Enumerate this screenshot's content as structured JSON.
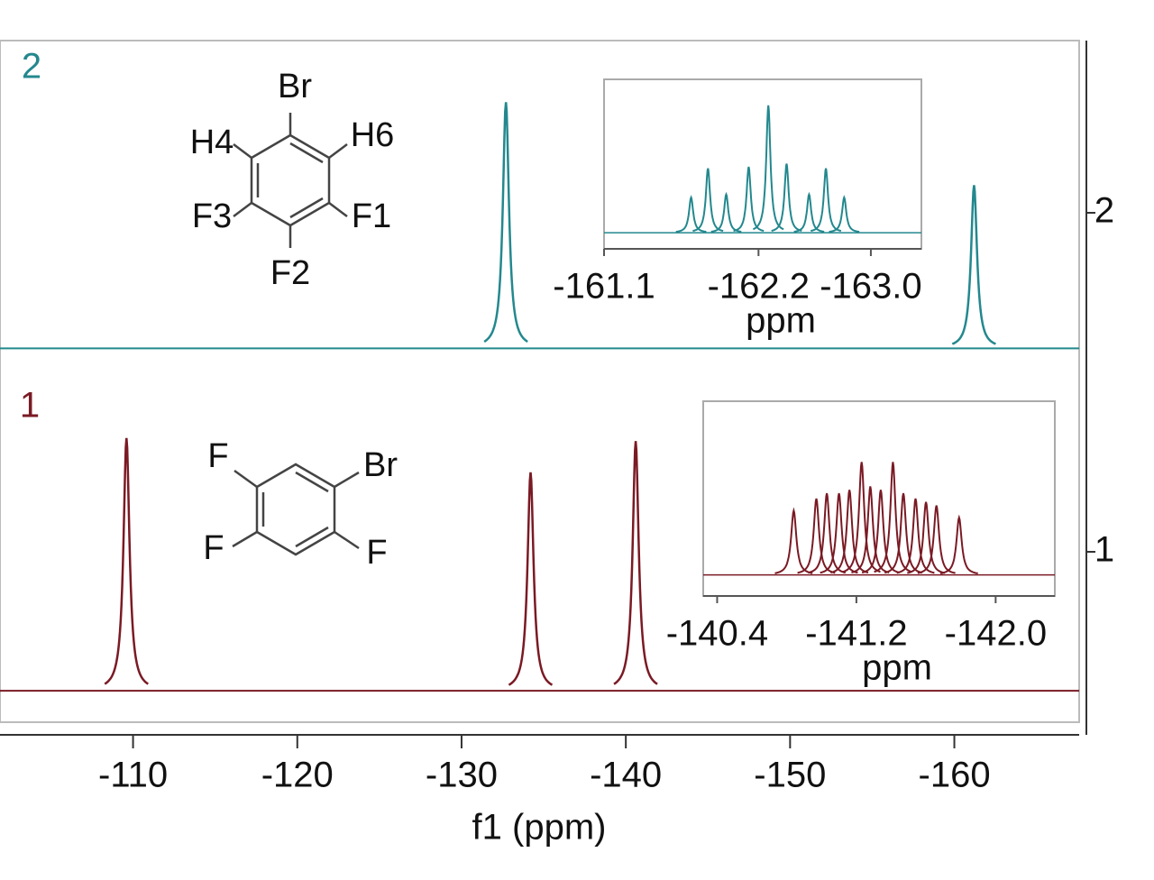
{
  "chart_data": {
    "type": "nmr",
    "xlabel": "f1 (ppm)",
    "xlim": [
      -101.9,
      -167.6
    ],
    "xticks": [
      -110,
      -120,
      -130,
      -140,
      -150,
      -160
    ],
    "series": [
      {
        "name": "2",
        "color": "#23888e",
        "offset_label": "2",
        "x": [
          -132.7,
          -161.2
        ],
        "values": [
          80,
          53
        ],
        "ylim": [
          -4,
          100
        ],
        "structure": [
          "Br",
          "H4",
          "H6",
          "F3",
          "F1",
          "F2"
        ],
        "inset": {
          "xlabel": "ppm",
          "xlim": [
            -161.1,
            -163.36
          ],
          "xticks": [
            -161.1,
            -162.2,
            {
              "value": -163,
              "label": "-163.0"
            }
          ],
          "ylim": [
            -7,
            100
          ],
          "x": [
            -161.72,
            -161.84,
            -161.97,
            -162.13,
            -162.27,
            -162.4,
            -162.56,
            -162.68,
            -162.81
          ],
          "values": [
            23,
            42,
            25,
            43,
            83,
            45,
            25,
            42,
            23
          ]
        }
      },
      {
        "name": "1",
        "color": "#7a1a24",
        "offset_label": "1",
        "x": [
          -109.6,
          -134.2,
          -140.6
        ],
        "values": [
          81,
          70,
          80
        ],
        "ylim": [
          -4,
          100
        ],
        "structure": [
          "F",
          "Br",
          "F",
          "F"
        ],
        "inset": {
          "xlabel": "ppm",
          "xlim": [
            -140.32,
            -142.34
          ],
          "xticks": [
            -140.4,
            -141.2,
            {
              "value": -142,
              "label": "-142.0"
            }
          ],
          "ylim": [
            -9,
            100
          ],
          "x": [
            -140.84,
            -140.97,
            -141.03,
            -141.1,
            -141.16,
            -141.23,
            -141.28,
            -141.34,
            -141.41,
            -141.47,
            -141.54,
            -141.6,
            -141.66,
            -141.79
          ],
          "values": [
            37,
            44,
            47,
            47,
            49,
            65,
            51,
            49,
            65,
            47,
            44,
            42,
            40,
            33
          ]
        }
      }
    ]
  }
}
